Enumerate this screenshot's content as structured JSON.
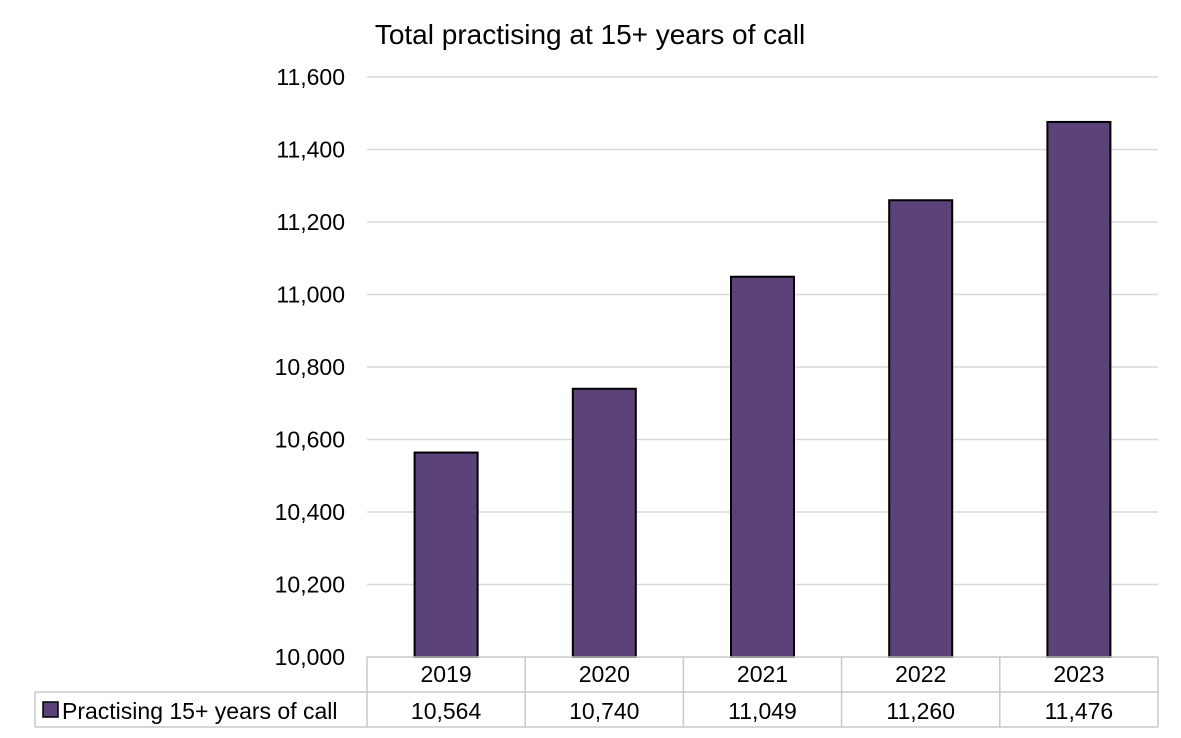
{
  "chart_data": {
    "type": "bar",
    "title": "Total practising at 15+ years of call",
    "categories": [
      "2019",
      "2020",
      "2021",
      "2022",
      "2023"
    ],
    "series": [
      {
        "name": "Practising 15+ years of call",
        "values": [
          10564,
          10740,
          11049,
          11260,
          11476
        ],
        "value_labels": [
          "10,564",
          "10,740",
          "11,049",
          "11,260",
          "11,476"
        ],
        "color": "#5b4279"
      }
    ],
    "ylim": [
      10000,
      11600
    ],
    "yticks": [
      10000,
      10200,
      10400,
      10600,
      10800,
      11000,
      11200,
      11400,
      11600
    ],
    "ytick_labels": [
      "10,000",
      "10,200",
      "10,400",
      "10,600",
      "10,800",
      "11,000",
      "11,200",
      "11,400",
      "11,600"
    ],
    "xlabel": "",
    "ylabel": "",
    "grid": true,
    "legend": "data-table-left",
    "data_table": true
  }
}
